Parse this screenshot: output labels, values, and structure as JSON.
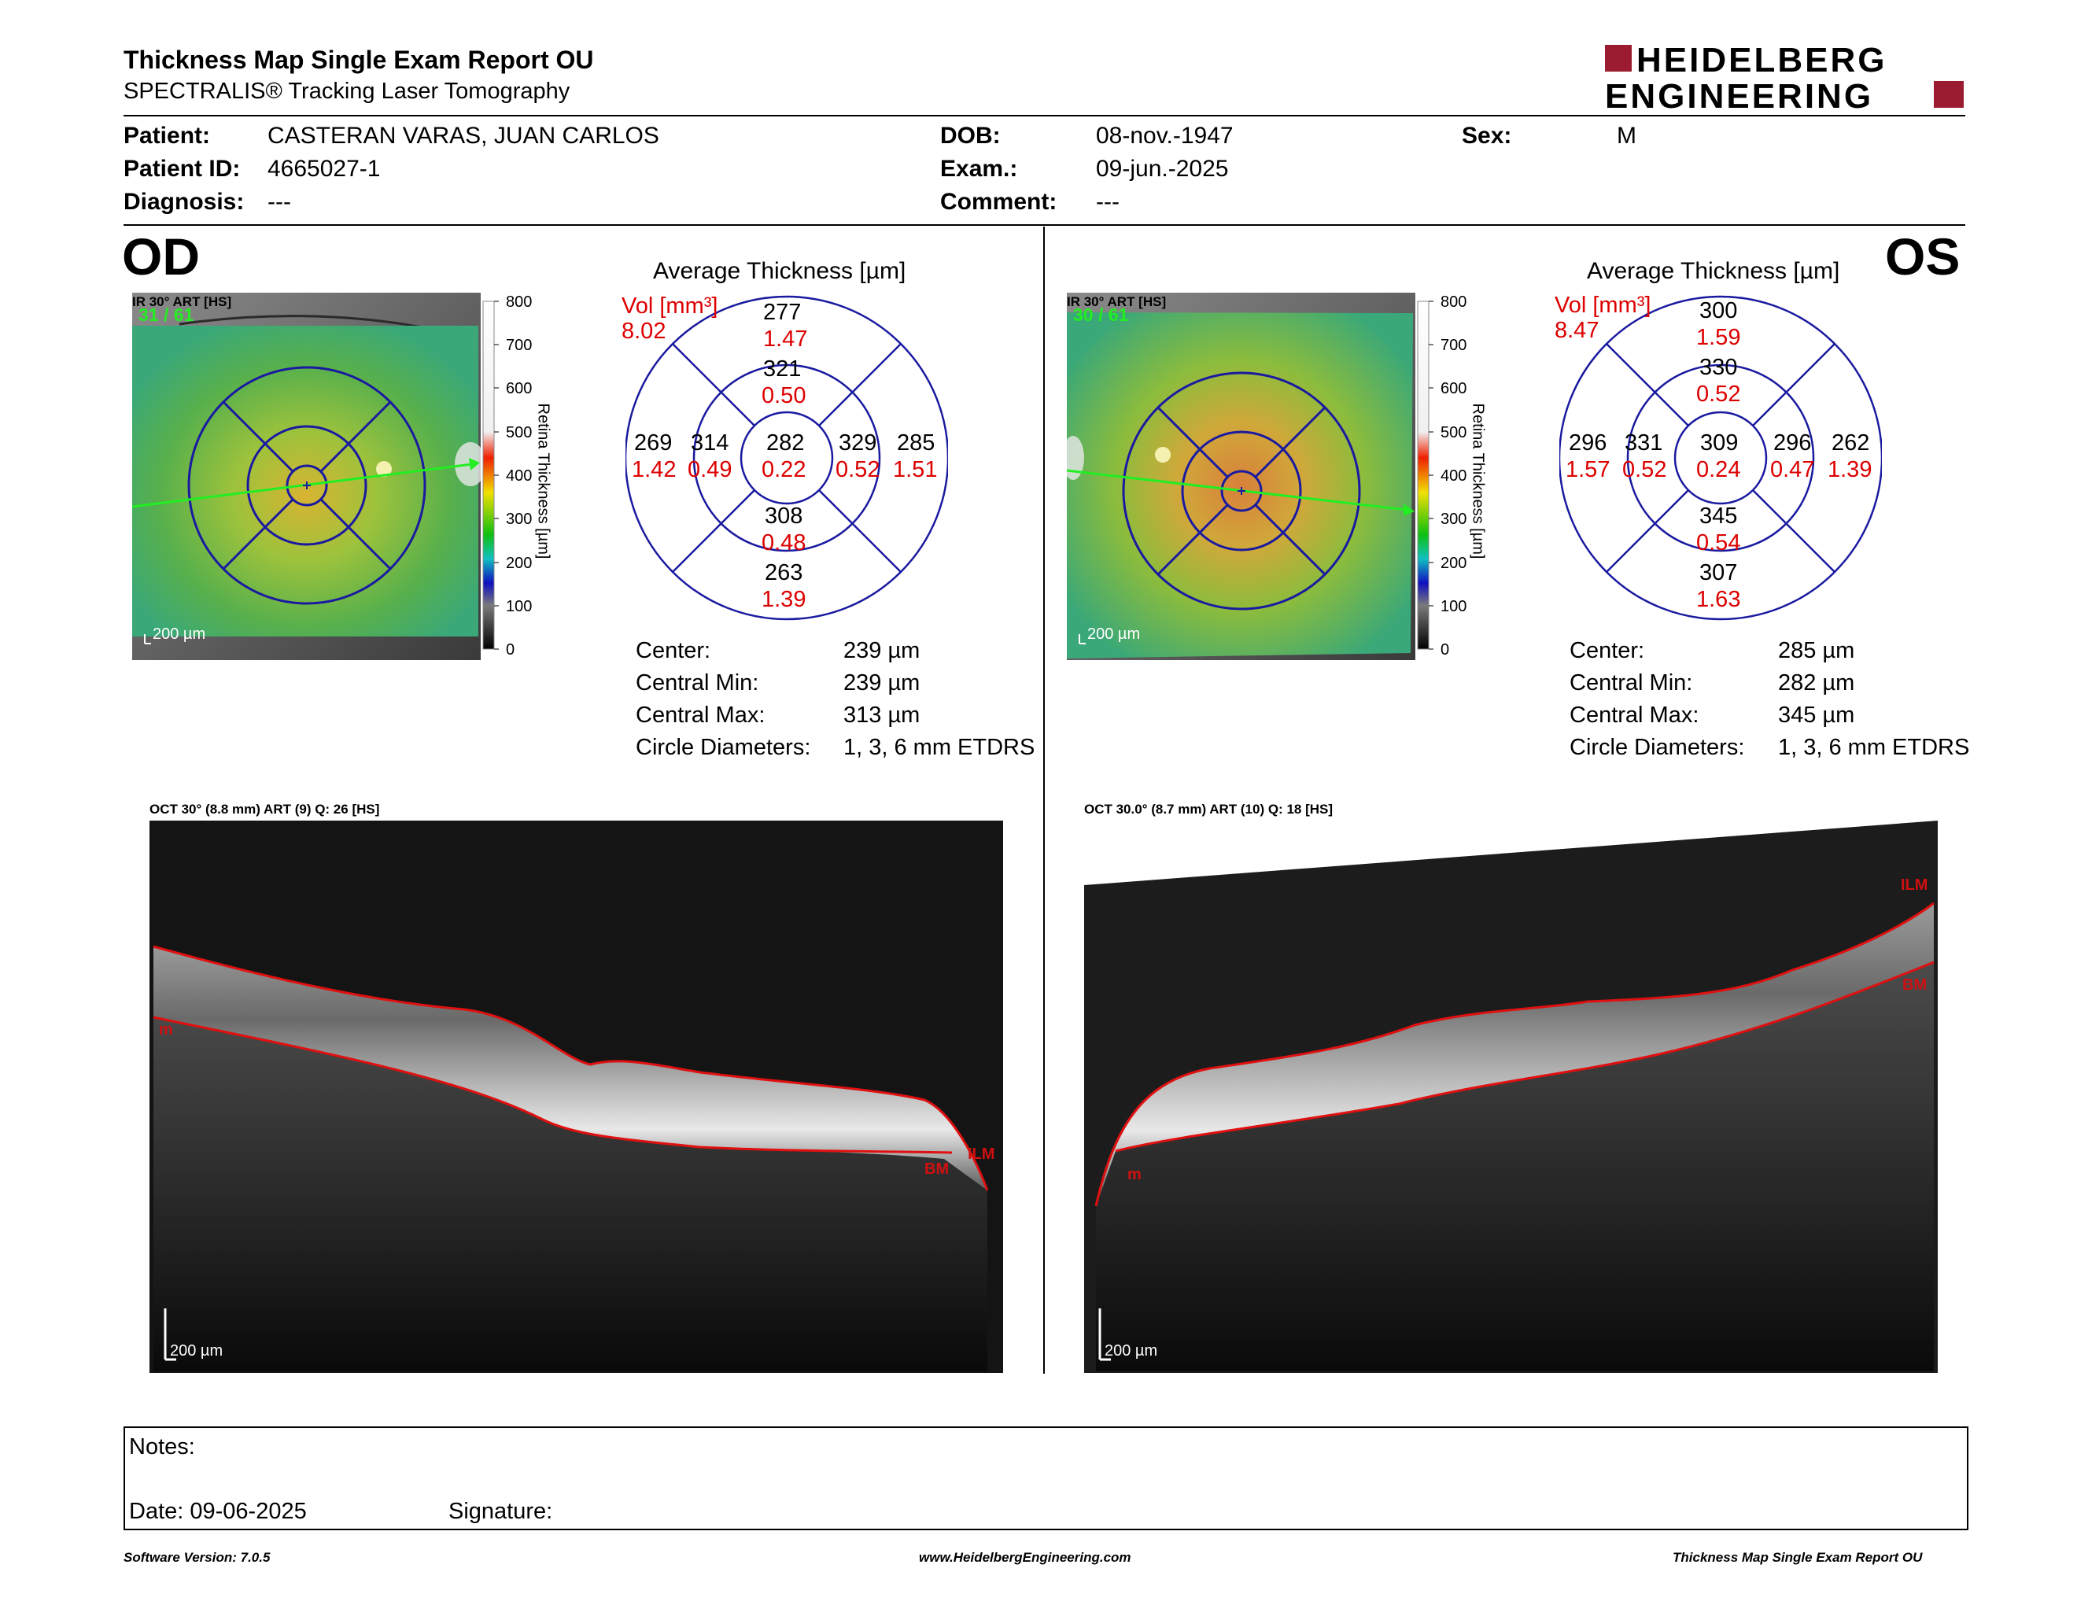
{
  "header": {
    "title": "Thickness Map Single Exam Report OU",
    "subtitle": "SPECTRALIS® Tracking Laser Tomography",
    "logo_line1": "HEIDELBERG",
    "logo_line2": "ENGINEERING"
  },
  "patient": {
    "patient_label": "Patient:",
    "patient_value": "CASTERAN VARAS, JUAN CARLOS",
    "id_label": "Patient ID:",
    "id_value": "4665027-1",
    "diagnosis_label": "Diagnosis:",
    "diagnosis_value": "---",
    "dob_label": "DOB:",
    "dob_value": "08-nov.-1947",
    "exam_label": "Exam.:",
    "exam_value": "09-jun.-2025",
    "comment_label": "Comment:",
    "comment_value": "---",
    "sex_label": "Sex:",
    "sex_value": "M"
  },
  "colorbar": {
    "ticks": [
      "800",
      "700",
      "600",
      "500",
      "400",
      "300",
      "200",
      "100",
      "0"
    ],
    "label": "Retina Thickness [µm]"
  },
  "od": {
    "eye": "OD",
    "ir_label": "IR 30° ART [HS]",
    "frames": "31 / 61",
    "scale": "200 µm",
    "avg_title": "Average Thickness [µm]",
    "vol_label": "Vol [mm³]",
    "vol_value": "8.02",
    "grid": {
      "outer_top": [
        "277",
        "1.47"
      ],
      "inner_top": [
        "321",
        "0.50"
      ],
      "outer_left": [
        "269",
        "1.42"
      ],
      "inner_left": [
        "314",
        "0.49"
      ],
      "center": [
        "282",
        "0.22"
      ],
      "inner_right": [
        "329",
        "0.52"
      ],
      "outer_right": [
        "285",
        "1.51"
      ],
      "inner_bottom": [
        "308",
        "0.48"
      ],
      "outer_bottom": [
        "263",
        "1.39"
      ]
    },
    "stats": [
      {
        "label": "Center:",
        "value": "239 µm"
      },
      {
        "label": "Central Min:",
        "value": "239 µm"
      },
      {
        "label": "Central Max:",
        "value": "313 µm"
      },
      {
        "label": "Circle Diameters:",
        "value": "1, 3, 6 mm ETDRS"
      }
    ],
    "oct_label": "OCT 30° (8.8 mm) ART (9) Q: 26 [HS]",
    "oct_scale": "200 µm",
    "ilm": "ILM",
    "bm": "BM",
    "m": "m"
  },
  "os": {
    "eye": "OS",
    "ir_label": "IR 30° ART [HS]",
    "frames": "30 / 61",
    "scale": "200 µm",
    "avg_title": "Average Thickness [µm]",
    "vol_label": "Vol [mm³]",
    "vol_value": "8.47",
    "grid": {
      "outer_top": [
        "300",
        "1.59"
      ],
      "inner_top": [
        "330",
        "0.52"
      ],
      "outer_left": [
        "296",
        "1.57"
      ],
      "inner_left": [
        "331",
        "0.52"
      ],
      "center": [
        "309",
        "0.24"
      ],
      "inner_right": [
        "296",
        "0.47"
      ],
      "outer_right": [
        "262",
        "1.39"
      ],
      "inner_bottom": [
        "345",
        "0.54"
      ],
      "outer_bottom": [
        "307",
        "1.63"
      ]
    },
    "stats": [
      {
        "label": "Center:",
        "value": "285 µm"
      },
      {
        "label": "Central Min:",
        "value": "282 µm"
      },
      {
        "label": "Central Max:",
        "value": "345 µm"
      },
      {
        "label": "Circle Diameters:",
        "value": "1, 3, 6 mm ETDRS"
      }
    ],
    "oct_label": "OCT 30.0° (8.7 mm) ART (10) Q: 18 [HS]",
    "oct_scale": "200 µm",
    "ilm": "ILM",
    "bm": "BM",
    "m": "m"
  },
  "notes": {
    "notes_label": "Notes:",
    "date_label": "Date: 09-06-2025",
    "signature_label": "Signature:"
  },
  "footer": {
    "version": "Software Version: 7.0.5",
    "website": "www.HeidelbergEngineering.com",
    "report": "Thickness Map Single Exam Report OU"
  },
  "colors": {
    "vol_red": "#dd0000",
    "grid_blue": "#1a1aa0",
    "logo_red": "#9b1b30",
    "frames_green": "#22ee22"
  }
}
